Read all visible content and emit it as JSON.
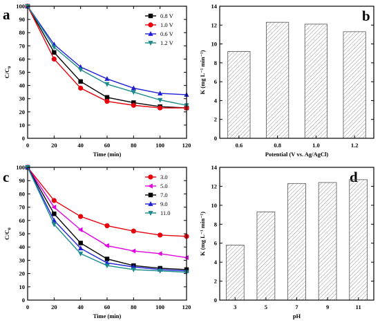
{
  "chart_data": [
    {
      "panel": "a",
      "type": "line",
      "xlabel": "Time (min)",
      "ylabel": "C/C",
      "ylabel_sub": "0",
      "x": [
        0,
        20,
        40,
        60,
        80,
        100,
        120
      ],
      "xlim": [
        0,
        120
      ],
      "ylim": [
        0,
        100
      ],
      "xticks": [
        0,
        20,
        40,
        60,
        80,
        100,
        120
      ],
      "yticks": [
        0,
        10,
        20,
        30,
        40,
        50,
        60,
        70,
        80,
        90,
        100
      ],
      "legend_position": "top-right",
      "series": [
        {
          "name": "0.8 V",
          "color": "#000000",
          "marker": "square",
          "values": [
            100,
            65,
            43,
            31,
            27,
            24,
            23
          ]
        },
        {
          "name": "1.0 V",
          "color": "#e8000b",
          "marker": "circle",
          "values": [
            100,
            60,
            38,
            28,
            25,
            23,
            23
          ]
        },
        {
          "name": "0.6 V",
          "color": "#1f1fd6",
          "marker": "triangle-up",
          "values": [
            100,
            71,
            54,
            45,
            38,
            34,
            33
          ]
        },
        {
          "name": "1.2 V",
          "color": "#1a8a8a",
          "marker": "triangle-down",
          "values": [
            100,
            69,
            52,
            41,
            35,
            29,
            25
          ]
        }
      ]
    },
    {
      "panel": "b",
      "type": "bar",
      "xlabel": "Potential (V vs. Ag/AgCl)",
      "ylabel": "K (mg L⁻¹ min⁻¹)",
      "categories": [
        "0.6",
        "0.8",
        "1.0",
        "1.2"
      ],
      "values": [
        9.2,
        12.3,
        12.1,
        11.3
      ],
      "ylim": [
        0,
        14
      ],
      "yticks": [
        0,
        2,
        4,
        6,
        8,
        10,
        12,
        14
      ]
    },
    {
      "panel": "c",
      "type": "line",
      "xlabel": "Time (min)",
      "ylabel": "C/C",
      "ylabel_sub": "0",
      "x": [
        0,
        20,
        40,
        60,
        80,
        100,
        120
      ],
      "xlim": [
        0,
        120
      ],
      "ylim": [
        0,
        100
      ],
      "xticks": [
        0,
        20,
        40,
        60,
        80,
        100,
        120
      ],
      "yticks": [
        0,
        10,
        20,
        30,
        40,
        50,
        60,
        70,
        80,
        90,
        100
      ],
      "legend_position": "top-right",
      "series": [
        {
          "name": "3.0",
          "color": "#e8000b",
          "marker": "circle",
          "values": [
            100,
            75,
            63,
            56,
            52,
            49,
            48
          ]
        },
        {
          "name": "5.0",
          "color": "#e000e0",
          "marker": "triangle-left",
          "values": [
            100,
            70,
            53,
            41,
            37,
            35,
            32
          ]
        },
        {
          "name": "7.0",
          "color": "#000000",
          "marker": "square",
          "values": [
            100,
            65,
            43,
            31,
            26,
            24,
            23
          ]
        },
        {
          "name": "9.0",
          "color": "#1f1fd6",
          "marker": "triangle-up",
          "values": [
            100,
            60,
            39,
            28,
            25,
            23,
            22
          ]
        },
        {
          "name": "11.0",
          "color": "#1a8a8a",
          "marker": "triangle-down",
          "values": [
            100,
            57,
            35,
            26,
            23,
            22,
            21
          ]
        }
      ]
    },
    {
      "panel": "d",
      "type": "bar",
      "xlabel": "pH",
      "ylabel": "K (mg L⁻¹ min⁻¹)",
      "categories": [
        "3",
        "5",
        "7",
        "9",
        "11"
      ],
      "values": [
        5.8,
        9.3,
        12.3,
        12.4,
        12.7
      ],
      "ylim": [
        0,
        14
      ],
      "yticks": [
        0,
        2,
        4,
        6,
        8,
        10,
        12,
        14
      ]
    }
  ]
}
